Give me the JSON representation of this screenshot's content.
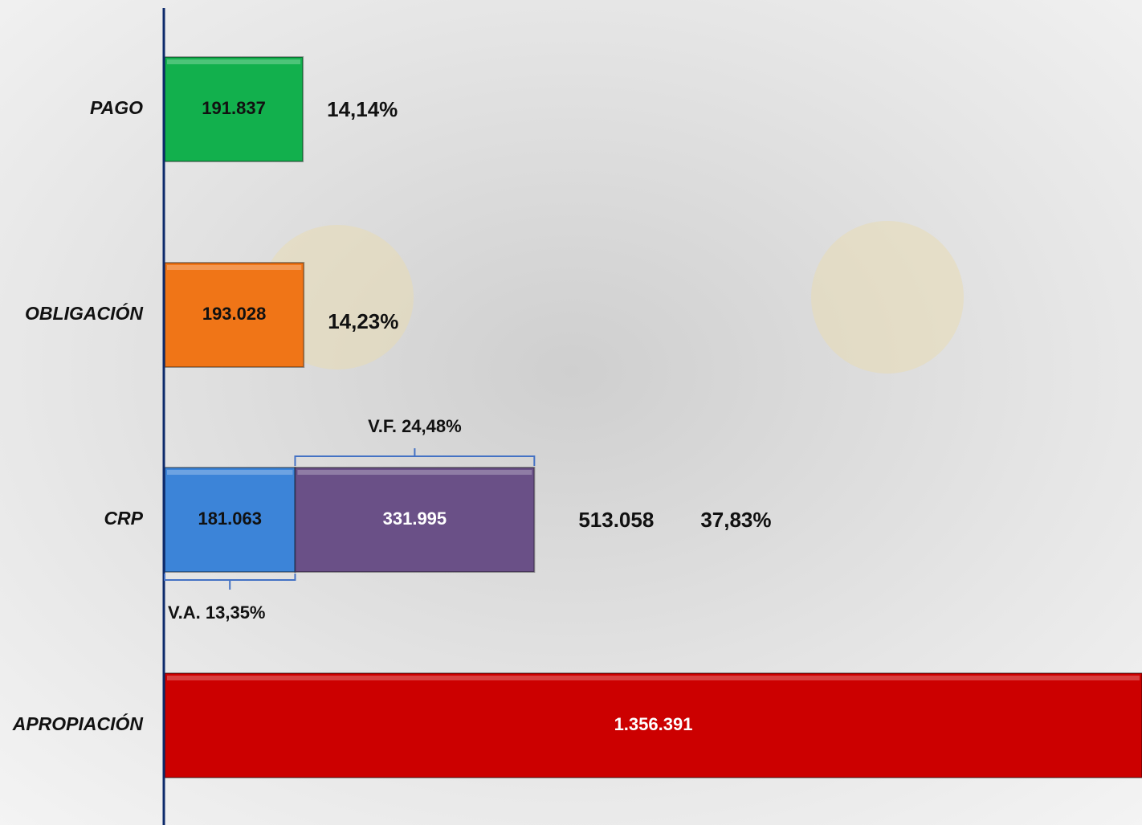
{
  "chart_data": {
    "type": "hbar-stacked",
    "categories": [
      "PAGO",
      "OBLIGACIÓN",
      "CRP",
      "APROPIACIÓN"
    ],
    "series": [
      {
        "colors": [
          "#12b04d",
          "#f07517",
          "#3c84d8",
          "#cc0000"
        ],
        "text_colors": [
          "#111111",
          "#111111",
          "#111111",
          "#ffffff"
        ],
        "values": [
          191837,
          193028,
          181063,
          1356391
        ],
        "value_labels": [
          "191.837",
          "193.028",
          "181.063",
          "1.356.391"
        ]
      },
      {
        "colors": [
          null,
          null,
          "#6a5087",
          null
        ],
        "text_colors": [
          null,
          null,
          "#ffffff",
          null
        ],
        "values": [
          null,
          null,
          331995,
          null
        ],
        "value_labels": [
          null,
          null,
          "331.995",
          null
        ]
      }
    ],
    "bracket_labels": [
      "V.A. 13,35%",
      "V.F. 24,48%"
    ],
    "crp_total": {
      "value": 513058,
      "label": "513.058"
    },
    "percent_labels": [
      "14,14%",
      "14,23%",
      "37,83%",
      null
    ],
    "xlim": [
      0,
      1356391
    ]
  }
}
